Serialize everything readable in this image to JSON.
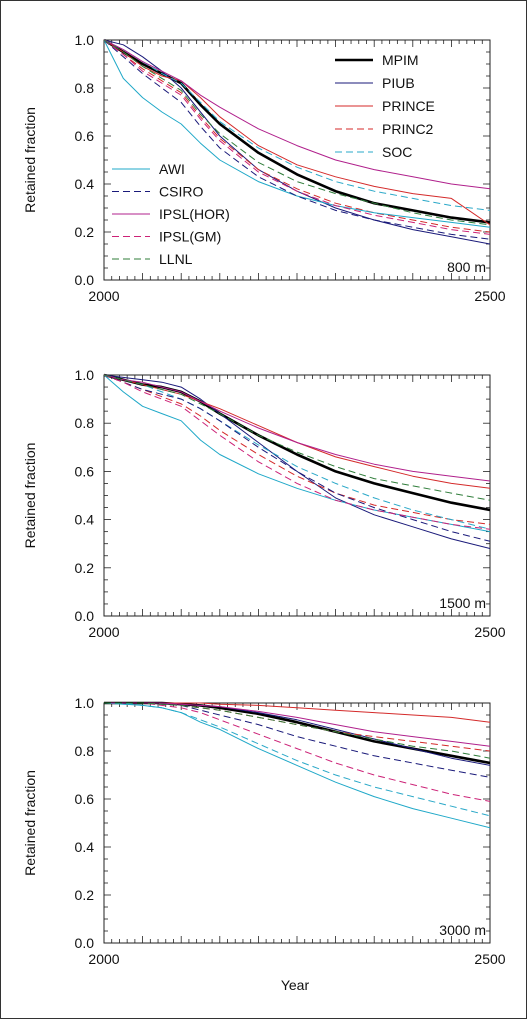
{
  "figure": {
    "xlabel": "Year",
    "ylabel": "Retained fraction"
  },
  "chart_data": [
    {
      "type": "line",
      "depth_label": "800 m",
      "xlim": [
        2000,
        2500
      ],
      "ylim": [
        0.0,
        1.0
      ],
      "x_ticks": [
        "2000",
        "2500"
      ],
      "y_ticks": [
        "0.0",
        "0.2",
        "0.4",
        "0.6",
        "0.8",
        "1.0"
      ],
      "ylabel": "Retained fraction",
      "x": [
        2000,
        2025,
        2050,
        2075,
        2100,
        2125,
        2150,
        2200,
        2250,
        2300,
        2350,
        2400,
        2450,
        2500
      ],
      "series": [
        {
          "name": "MPIM",
          "color": "#000000",
          "dash": "solid",
          "width": 2.6,
          "values": [
            1.0,
            0.95,
            0.9,
            0.86,
            0.82,
            0.73,
            0.65,
            0.53,
            0.44,
            0.37,
            0.32,
            0.29,
            0.26,
            0.24
          ]
        },
        {
          "name": "PIUB",
          "color": "#1a1a7a",
          "dash": "solid",
          "width": 1.0,
          "values": [
            1.0,
            0.98,
            0.93,
            0.87,
            0.8,
            0.7,
            0.6,
            0.46,
            0.37,
            0.3,
            0.25,
            0.21,
            0.18,
            0.15
          ]
        },
        {
          "name": "PRINCE",
          "color": "#d42a2a",
          "dash": "solid",
          "width": 1.0,
          "values": [
            1.0,
            0.95,
            0.89,
            0.85,
            0.83,
            0.76,
            0.68,
            0.56,
            0.48,
            0.43,
            0.39,
            0.36,
            0.34,
            0.23
          ]
        },
        {
          "name": "PRINC2",
          "color": "#d42a2a",
          "dash": "dashed",
          "width": 1.0,
          "values": [
            1.0,
            0.94,
            0.88,
            0.83,
            0.78,
            0.68,
            0.59,
            0.46,
            0.38,
            0.32,
            0.28,
            0.25,
            0.22,
            0.2
          ]
        },
        {
          "name": "SOC",
          "color": "#2aa8c8",
          "dash": "dashed",
          "width": 1.0,
          "values": [
            1.0,
            0.96,
            0.91,
            0.86,
            0.82,
            0.74,
            0.66,
            0.55,
            0.47,
            0.41,
            0.37,
            0.34,
            0.31,
            0.29
          ]
        },
        {
          "name": "AWI",
          "color": "#1fa8c8",
          "dash": "solid",
          "width": 1.0,
          "values": [
            1.0,
            0.84,
            0.76,
            0.7,
            0.65,
            0.57,
            0.5,
            0.41,
            0.35,
            0.31,
            0.28,
            0.26,
            0.24,
            0.22
          ]
        },
        {
          "name": "CSIRO",
          "color": "#1a1a7a",
          "dash": "dashed",
          "width": 1.0,
          "values": [
            1.0,
            0.93,
            0.86,
            0.8,
            0.74,
            0.64,
            0.55,
            0.43,
            0.35,
            0.29,
            0.25,
            0.22,
            0.19,
            0.17
          ]
        },
        {
          "name": "IPSL(HOR)",
          "color": "#b0208c",
          "dash": "solid",
          "width": 1.0,
          "values": [
            1.0,
            0.96,
            0.91,
            0.87,
            0.83,
            0.77,
            0.72,
            0.63,
            0.56,
            0.5,
            0.46,
            0.43,
            0.4,
            0.38
          ]
        },
        {
          "name": "IPSL(GM)",
          "color": "#cc2277",
          "dash": "dashed",
          "width": 1.0,
          "values": [
            1.0,
            0.94,
            0.87,
            0.82,
            0.77,
            0.67,
            0.58,
            0.45,
            0.37,
            0.31,
            0.27,
            0.24,
            0.21,
            0.19
          ]
        },
        {
          "name": "LLNL",
          "color": "#2f7d3a",
          "dash": "dashed",
          "width": 1.0,
          "values": [
            1.0,
            0.95,
            0.89,
            0.84,
            0.79,
            0.69,
            0.61,
            0.49,
            0.41,
            0.36,
            0.32,
            0.28,
            0.25,
            0.23
          ]
        }
      ]
    },
    {
      "type": "line",
      "depth_label": "1500 m",
      "xlim": [
        2000,
        2500
      ],
      "ylim": [
        0.0,
        1.0
      ],
      "x_ticks": [
        "2000",
        "2500"
      ],
      "y_ticks": [
        "0.0",
        "0.2",
        "0.4",
        "0.6",
        "0.8",
        "1.0"
      ],
      "ylabel": "Retained fraction",
      "x": [
        2000,
        2025,
        2050,
        2075,
        2100,
        2125,
        2150,
        2200,
        2250,
        2300,
        2350,
        2400,
        2450,
        2500
      ],
      "series": [
        {
          "name": "MPIM",
          "color": "#000000",
          "dash": "solid",
          "width": 2.6,
          "values": [
            1.0,
            0.98,
            0.96,
            0.95,
            0.93,
            0.89,
            0.84,
            0.75,
            0.67,
            0.6,
            0.55,
            0.51,
            0.47,
            0.44
          ]
        },
        {
          "name": "PIUB",
          "color": "#1a1a7a",
          "dash": "solid",
          "width": 1.0,
          "values": [
            1.0,
            0.99,
            0.98,
            0.97,
            0.95,
            0.9,
            0.84,
            0.72,
            0.6,
            0.49,
            0.42,
            0.37,
            0.32,
            0.28
          ]
        },
        {
          "name": "PRINCE",
          "color": "#d42a2a",
          "dash": "solid",
          "width": 1.0,
          "values": [
            1.0,
            0.98,
            0.96,
            0.94,
            0.92,
            0.89,
            0.86,
            0.79,
            0.72,
            0.66,
            0.62,
            0.58,
            0.55,
            0.53
          ]
        },
        {
          "name": "PRINC2",
          "color": "#d42a2a",
          "dash": "dashed",
          "width": 1.0,
          "values": [
            1.0,
            0.97,
            0.94,
            0.91,
            0.88,
            0.83,
            0.77,
            0.67,
            0.58,
            0.51,
            0.46,
            0.43,
            0.4,
            0.38
          ]
        },
        {
          "name": "SOC",
          "color": "#2aa8c8",
          "dash": "dashed",
          "width": 1.0,
          "values": [
            1.0,
            0.98,
            0.96,
            0.93,
            0.9,
            0.86,
            0.81,
            0.71,
            0.62,
            0.55,
            0.49,
            0.44,
            0.4,
            0.36
          ]
        },
        {
          "name": "AWI",
          "color": "#1fa8c8",
          "dash": "solid",
          "width": 1.0,
          "values": [
            1.0,
            0.93,
            0.87,
            0.84,
            0.81,
            0.73,
            0.67,
            0.59,
            0.53,
            0.48,
            0.44,
            0.41,
            0.38,
            0.35
          ]
        },
        {
          "name": "CSIRO",
          "color": "#1a1a7a",
          "dash": "dashed",
          "width": 1.0,
          "values": [
            1.0,
            0.97,
            0.94,
            0.92,
            0.9,
            0.86,
            0.81,
            0.7,
            0.6,
            0.51,
            0.45,
            0.4,
            0.35,
            0.31
          ]
        },
        {
          "name": "IPSL(HOR)",
          "color": "#b0208c",
          "dash": "solid",
          "width": 1.0,
          "values": [
            1.0,
            0.98,
            0.97,
            0.95,
            0.93,
            0.89,
            0.85,
            0.78,
            0.72,
            0.67,
            0.63,
            0.6,
            0.58,
            0.56
          ]
        },
        {
          "name": "IPSL(GM)",
          "color": "#cc2277",
          "dash": "dashed",
          "width": 1.0,
          "values": [
            1.0,
            0.97,
            0.93,
            0.9,
            0.87,
            0.81,
            0.75,
            0.64,
            0.55,
            0.48,
            0.44,
            0.41,
            0.38,
            0.36
          ]
        },
        {
          "name": "LLNL",
          "color": "#2f7d3a",
          "dash": "dashed",
          "width": 1.0,
          "values": [
            1.0,
            0.98,
            0.96,
            0.94,
            0.92,
            0.88,
            0.84,
            0.75,
            0.68,
            0.62,
            0.57,
            0.54,
            0.51,
            0.48
          ]
        }
      ]
    },
    {
      "type": "line",
      "depth_label": "3000 m",
      "xlim": [
        2000,
        2500
      ],
      "ylim": [
        0.0,
        1.0
      ],
      "x_ticks": [
        "2000",
        "2500"
      ],
      "y_ticks": [
        "0.0",
        "0.2",
        "0.4",
        "0.6",
        "0.8",
        "1.0"
      ],
      "ylabel": "Retained fraction",
      "x": [
        2000,
        2025,
        2050,
        2075,
        2100,
        2125,
        2150,
        2200,
        2250,
        2300,
        2350,
        2400,
        2450,
        2500
      ],
      "series": [
        {
          "name": "MPIM",
          "color": "#000000",
          "dash": "solid",
          "width": 2.6,
          "values": [
            1.0,
            1.0,
            1.0,
            1.0,
            0.995,
            0.99,
            0.98,
            0.955,
            0.92,
            0.88,
            0.84,
            0.81,
            0.78,
            0.75
          ]
        },
        {
          "name": "PIUB",
          "color": "#1a1a7a",
          "dash": "solid",
          "width": 1.0,
          "values": [
            1.0,
            1.0,
            1.0,
            1.0,
            0.995,
            0.99,
            0.985,
            0.96,
            0.93,
            0.89,
            0.85,
            0.81,
            0.77,
            0.74
          ]
        },
        {
          "name": "PRINCE",
          "color": "#d42a2a",
          "dash": "solid",
          "width": 1.0,
          "values": [
            1.0,
            1.0,
            1.0,
            1.0,
            1.0,
            1.0,
            0.995,
            0.99,
            0.98,
            0.97,
            0.96,
            0.95,
            0.94,
            0.92
          ]
        },
        {
          "name": "PRINC2",
          "color": "#d42a2a",
          "dash": "dashed",
          "width": 1.0,
          "values": [
            1.0,
            1.0,
            1.0,
            0.995,
            0.99,
            0.98,
            0.97,
            0.94,
            0.91,
            0.88,
            0.86,
            0.84,
            0.82,
            0.8
          ]
        },
        {
          "name": "SOC",
          "color": "#2aa8c8",
          "dash": "dashed",
          "width": 1.0,
          "values": [
            1.0,
            1.0,
            0.99,
            0.98,
            0.96,
            0.93,
            0.9,
            0.83,
            0.76,
            0.7,
            0.65,
            0.61,
            0.57,
            0.53
          ]
        },
        {
          "name": "AWI",
          "color": "#1fa8c8",
          "dash": "solid",
          "width": 1.0,
          "values": [
            1.0,
            0.995,
            0.99,
            0.98,
            0.96,
            0.92,
            0.89,
            0.81,
            0.74,
            0.67,
            0.61,
            0.56,
            0.52,
            0.48
          ]
        },
        {
          "name": "CSIRO",
          "color": "#1a1a7a",
          "dash": "dashed",
          "width": 1.0,
          "values": [
            1.0,
            1.0,
            1.0,
            0.995,
            0.99,
            0.97,
            0.95,
            0.91,
            0.86,
            0.82,
            0.78,
            0.75,
            0.72,
            0.69
          ]
        },
        {
          "name": "IPSL(HOR)",
          "color": "#b0208c",
          "dash": "solid",
          "width": 1.0,
          "values": [
            1.0,
            1.0,
            1.0,
            1.0,
            0.995,
            0.99,
            0.985,
            0.965,
            0.94,
            0.91,
            0.88,
            0.86,
            0.84,
            0.82
          ]
        },
        {
          "name": "IPSL(GM)",
          "color": "#cc2277",
          "dash": "dashed",
          "width": 1.0,
          "values": [
            1.0,
            1.0,
            1.0,
            0.99,
            0.98,
            0.96,
            0.93,
            0.87,
            0.81,
            0.75,
            0.7,
            0.66,
            0.62,
            0.59
          ]
        },
        {
          "name": "LLNL",
          "color": "#2f7d3a",
          "dash": "dashed",
          "width": 1.0,
          "values": [
            1.0,
            1.0,
            1.0,
            0.995,
            0.99,
            0.98,
            0.97,
            0.94,
            0.91,
            0.88,
            0.85,
            0.82,
            0.8,
            0.77
          ]
        }
      ]
    }
  ],
  "legend_right": [
    "MPIM",
    "PIUB",
    "PRINCE",
    "PRINC2",
    "SOC"
  ],
  "legend_left": [
    "AWI",
    "CSIRO",
    "IPSL(HOR)",
    "IPSL(GM)",
    "LLNL"
  ]
}
